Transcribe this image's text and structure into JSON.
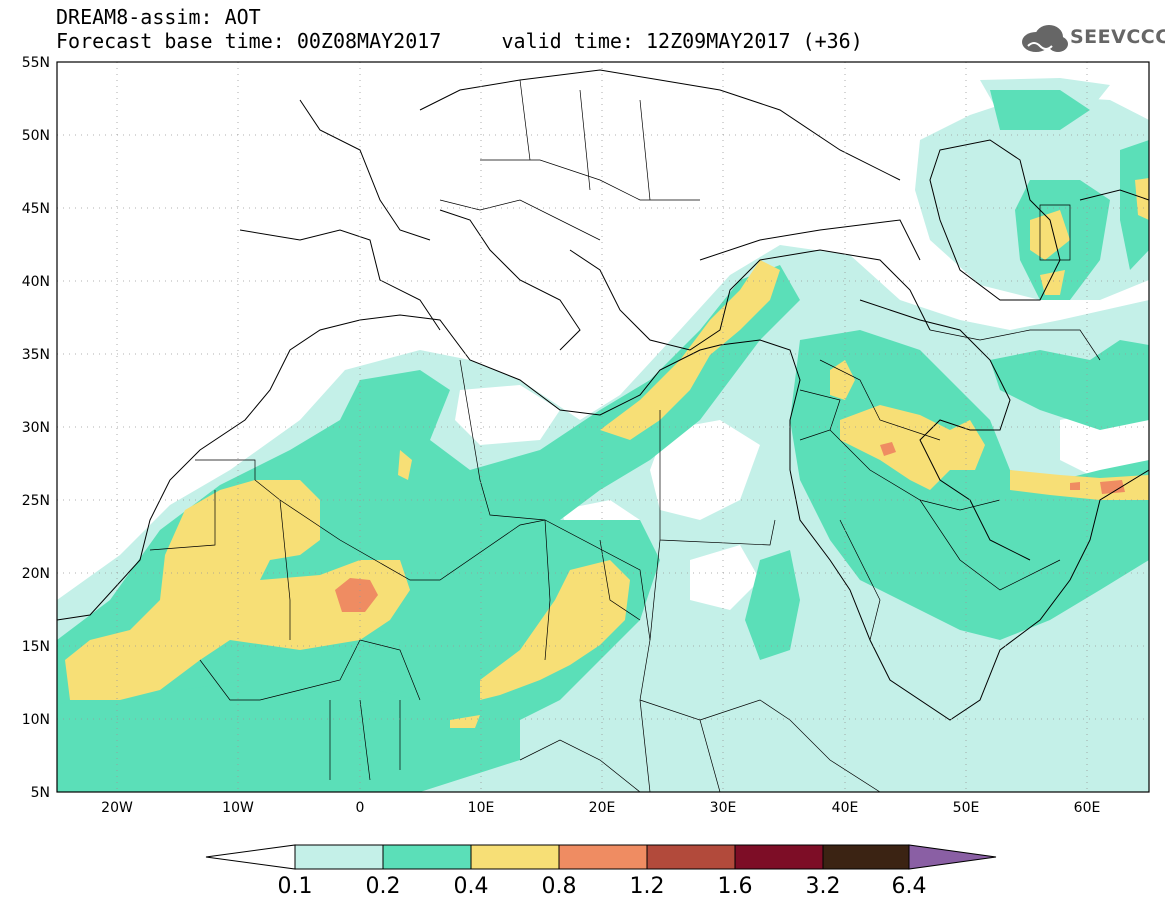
{
  "header": {
    "line1": "DREAM8-assim: AOT",
    "line2": "Forecast base time: 00Z08MAY2017     valid time: 12Z09MAY2017 (+36)",
    "logo_text": "SEEVCCC"
  },
  "map": {
    "variable": "AOT",
    "lon_range": [
      -25,
      65
    ],
    "lat_range": [
      5,
      55
    ],
    "lat_ticks": [
      "55N",
      "50N",
      "45N",
      "40N",
      "35N",
      "30N",
      "25N",
      "20N",
      "15N",
      "10N",
      "5N"
    ],
    "lon_ticks": [
      "20W",
      "10W",
      "0",
      "10E",
      "20E",
      "30E",
      "40E",
      "50E",
      "60E"
    ],
    "coastline_color": "#000000"
  },
  "legend": {
    "levels": [
      "0.1",
      "0.2",
      "0.4",
      "0.8",
      "1.2",
      "1.6",
      "3.2",
      "6.4"
    ],
    "colors": [
      "#c4f0e8",
      "#5bdfb8",
      "#f7df76",
      "#ef8c62",
      "#b24a3b",
      "#7d0d26",
      "#3b2313",
      "#8a5fa4"
    ],
    "under_color": "#ffffff"
  }
}
